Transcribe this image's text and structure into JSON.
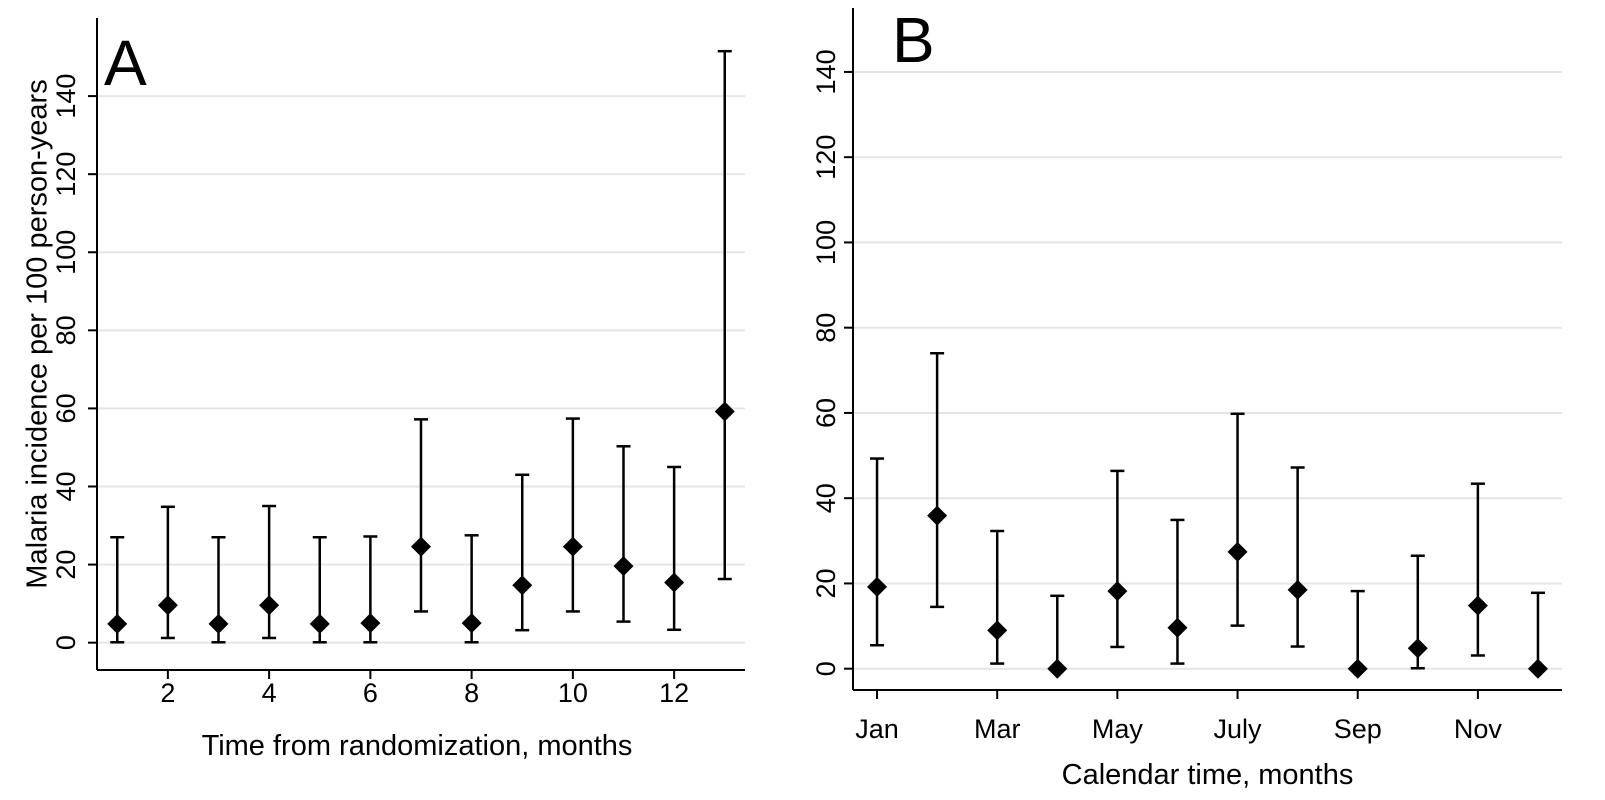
{
  "chart_data": [
    {
      "type": "scatter",
      "panel": "A",
      "xlabel": "Time from randomization, months",
      "ylabel": "Malaria incidence per 100 person-years",
      "xlim": [
        0.6,
        13.4
      ],
      "ylim": [
        -7,
        160
      ],
      "grid": true,
      "x_ticks": [
        {
          "value": 2,
          "label": "2"
        },
        {
          "value": 4,
          "label": "4"
        },
        {
          "value": 6,
          "label": "6"
        },
        {
          "value": 8,
          "label": "8"
        },
        {
          "value": 10,
          "label": "10"
        },
        {
          "value": 12,
          "label": "12"
        }
      ],
      "y_ticks": [
        {
          "value": 0,
          "label": "0"
        },
        {
          "value": 20,
          "label": "20"
        },
        {
          "value": 40,
          "label": "40"
        },
        {
          "value": 60,
          "label": "60"
        },
        {
          "value": 80,
          "label": "80"
        },
        {
          "value": 100,
          "label": "100"
        },
        {
          "value": 120,
          "label": "120"
        },
        {
          "value": 140,
          "label": "140"
        }
      ],
      "points": [
        {
          "x": 1,
          "y": 4.8,
          "lo": 0.1,
          "hi": 27
        },
        {
          "x": 2,
          "y": 9.6,
          "lo": 1.2,
          "hi": 34.8
        },
        {
          "x": 3,
          "y": 4.8,
          "lo": 0.1,
          "hi": 27
        },
        {
          "x": 4,
          "y": 9.6,
          "lo": 1.2,
          "hi": 35
        },
        {
          "x": 5,
          "y": 4.8,
          "lo": 0.1,
          "hi": 27
        },
        {
          "x": 6,
          "y": 5.0,
          "lo": 0.1,
          "hi": 27.2
        },
        {
          "x": 7,
          "y": 24.6,
          "lo": 8,
          "hi": 57.2
        },
        {
          "x": 8,
          "y": 5.0,
          "lo": 0.1,
          "hi": 27.5
        },
        {
          "x": 9,
          "y": 14.7,
          "lo": 3.2,
          "hi": 43
        },
        {
          "x": 10,
          "y": 24.6,
          "lo": 8,
          "hi": 57.4
        },
        {
          "x": 11,
          "y": 19.6,
          "lo": 5.4,
          "hi": 50.3
        },
        {
          "x": 12,
          "y": 15.4,
          "lo": 3.3,
          "hi": 45
        },
        {
          "x": 13,
          "y": 59.2,
          "lo": 16.3,
          "hi": 151.5
        }
      ]
    },
    {
      "type": "scatter",
      "panel": "B",
      "xlabel": "Calendar time, months",
      "ylabel": "",
      "xlim": [
        0.6,
        12.4
      ],
      "ylim": [
        -5,
        155
      ],
      "grid": true,
      "x_ticks": [
        {
          "value": 1,
          "label": "Jan"
        },
        {
          "value": 3,
          "label": "Mar"
        },
        {
          "value": 5,
          "label": "May"
        },
        {
          "value": 7,
          "label": "July"
        },
        {
          "value": 9,
          "label": "Sep"
        },
        {
          "value": 11,
          "label": "Nov"
        }
      ],
      "y_ticks": [
        {
          "value": 0,
          "label": "0"
        },
        {
          "value": 20,
          "label": "20"
        },
        {
          "value": 40,
          "label": "40"
        },
        {
          "value": 60,
          "label": "60"
        },
        {
          "value": 80,
          "label": "80"
        },
        {
          "value": 100,
          "label": "100"
        },
        {
          "value": 120,
          "label": "120"
        },
        {
          "value": 140,
          "label": "140"
        }
      ],
      "points": [
        {
          "x": 1,
          "y": 19.2,
          "lo": 5.5,
          "hi": 49.3
        },
        {
          "x": 2,
          "y": 35.9,
          "lo": 14.5,
          "hi": 74
        },
        {
          "x": 3,
          "y": 9.0,
          "lo": 1.2,
          "hi": 32.3
        },
        {
          "x": 4,
          "y": 0,
          "lo": 0,
          "hi": 17.1
        },
        {
          "x": 5,
          "y": 18.2,
          "lo": 5.1,
          "hi": 46.4
        },
        {
          "x": 6,
          "y": 9.6,
          "lo": 1.2,
          "hi": 34.9
        },
        {
          "x": 7,
          "y": 27.4,
          "lo": 10.1,
          "hi": 59.8
        },
        {
          "x": 8,
          "y": 18.5,
          "lo": 5.2,
          "hi": 47.2
        },
        {
          "x": 9,
          "y": 0,
          "lo": 0,
          "hi": 18.2
        },
        {
          "x": 10,
          "y": 4.8,
          "lo": 0.1,
          "hi": 26.5
        },
        {
          "x": 11,
          "y": 14.8,
          "lo": 3.1,
          "hi": 43.4
        },
        {
          "x": 12,
          "y": 0,
          "lo": 0,
          "hi": 17.8
        }
      ]
    }
  ]
}
